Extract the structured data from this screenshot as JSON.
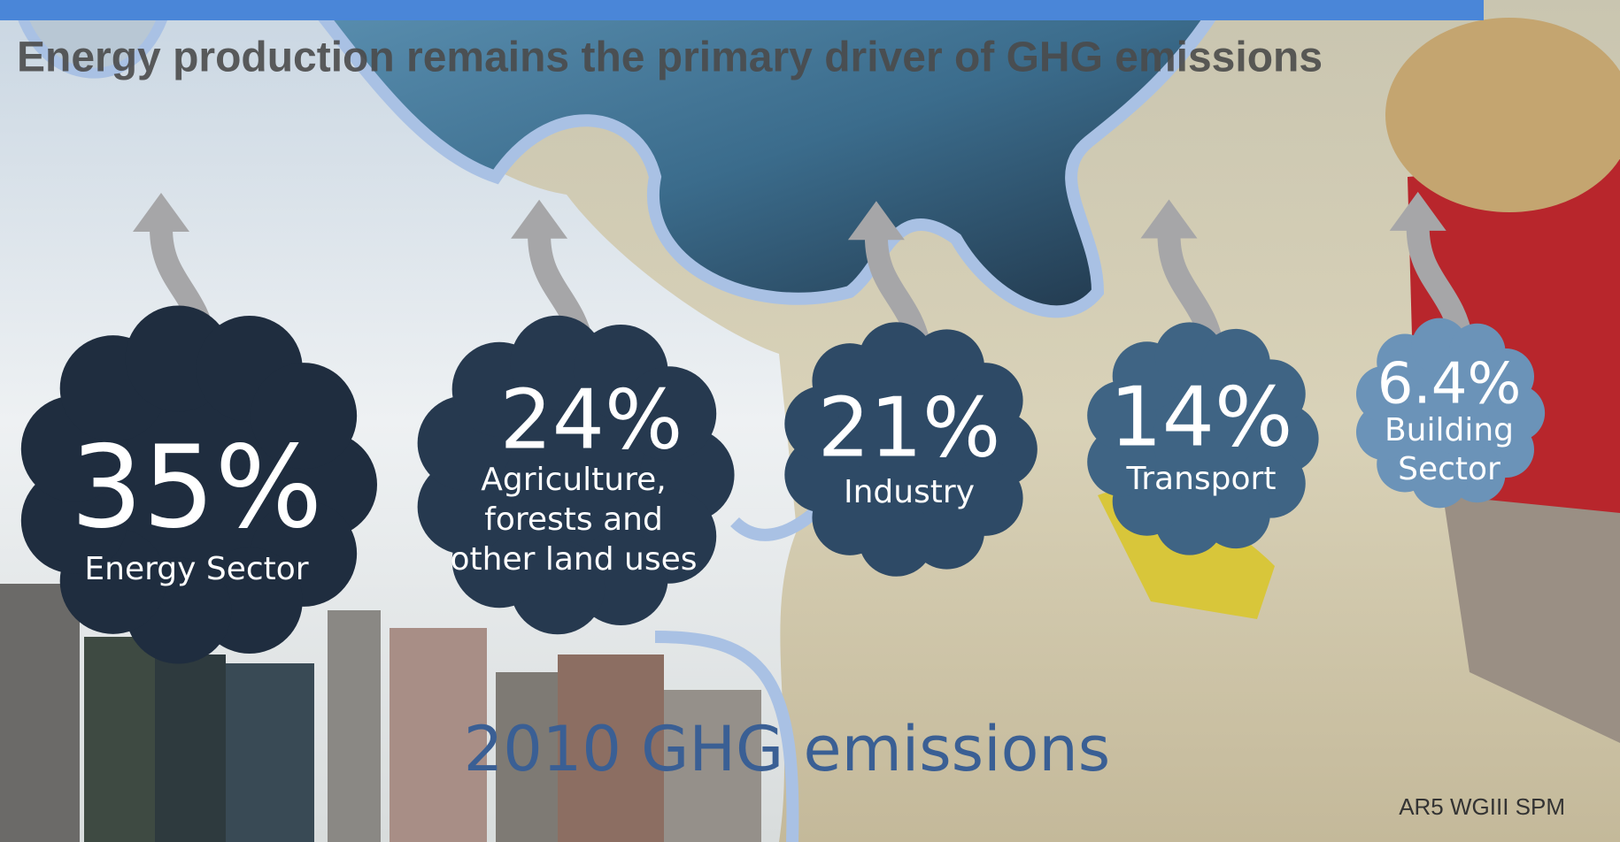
{
  "title": "Energy production remains the primary driver of GHG emissions",
  "sectors": [
    {
      "share": "35%",
      "label": [
        "Energy Sector"
      ]
    },
    {
      "share": "24%",
      "label": [
        "Agriculture,",
        "forests and",
        "other land uses"
      ]
    },
    {
      "share": "21%",
      "label": [
        "Industry"
      ]
    },
    {
      "share": "14%",
      "label": [
        "Transport"
      ]
    },
    {
      "share": "6.4%",
      "label": [
        "Building",
        "Sector"
      ]
    }
  ],
  "subtitle": "2010 GHG emissions",
  "source": "AR5 WGIII SPM"
}
